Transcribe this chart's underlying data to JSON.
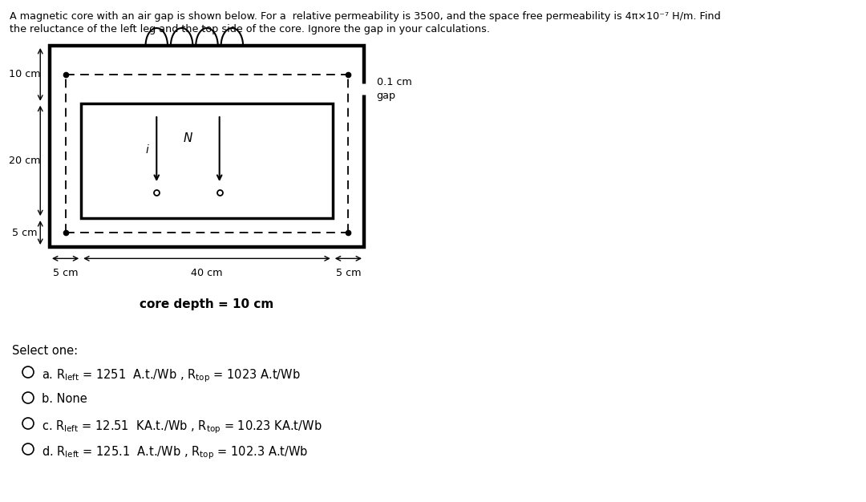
{
  "title_line1": "A magnetic core with an air gap is shown below. For a  relative permeability is 3500, and the space free permeability is 4π×10⁻⁷ H/m. Find",
  "title_line2": "the reluctance of the left leg and the top side of the core. Ignore the gap in your calculations.",
  "label_10cm": "10 cm",
  "label_20cm": "20 cm",
  "label_5cm_left": "5 cm",
  "label_5cm_bot_left": "5 cm",
  "label_40cm": "40 cm",
  "label_5cm_bot_right": "5 cm",
  "label_gap": "0.1 cm\ngap",
  "label_depth": "core depth = 10 cm",
  "select_one": "Select one:",
  "opt_a": "a. R$_{\\rm left}$ = 1251  A.t./Wb , R$_{\\rm top}$ = 1023 A.t/Wb",
  "opt_b": "b. None",
  "opt_c": "c. R$_{\\rm left}$ = 12.51  KA.t./Wb , R$_{\\rm top}$ = 10.23 KA.t/Wb",
  "opt_d": "d. R$_{\\rm left}$ = 125.1  A.t./Wb , R$_{\\rm top}$ = 102.3 A.t/Wb",
  "bg_color": "#ffffff",
  "text_color": "#000000"
}
